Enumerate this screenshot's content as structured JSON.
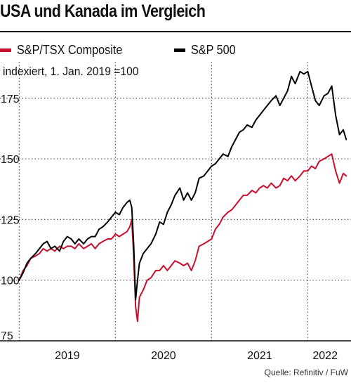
{
  "title": "USA und Kanada im Vergleich",
  "subtitle": "indexiert, 1. Jan. 2019 =100",
  "source": "Quelle: Refinitiv / FuW",
  "legend": [
    {
      "label": "S&P/TSX Composite",
      "color": "#c8102e"
    },
    {
      "label": "S&P 500",
      "color": "#000000"
    }
  ],
  "chart_data": {
    "type": "line",
    "ylim": [
      75,
      190
    ],
    "xlim": [
      2018.8,
      2022.45
    ],
    "y_ticks": [
      100,
      125,
      150,
      175
    ],
    "y_tick_labels": [
      "100",
      "125",
      "150",
      "175"
    ],
    "y_tick_label_75": "75",
    "x_ticks": [
      2019,
      2020,
      2021,
      2022
    ],
    "x_tick_labels": [
      "2019",
      "2020",
      "2021",
      "2022"
    ],
    "x_tick_label_years": [
      2019,
      2020,
      2021,
      2022
    ],
    "grid": true,
    "series": [
      {
        "name": "S&P/TSX Composite",
        "color": "#c8102e",
        "x": [
          2019.0,
          2019.04,
          2019.08,
          2019.12,
          2019.17,
          2019.21,
          2019.25,
          2019.29,
          2019.33,
          2019.37,
          2019.42,
          2019.46,
          2019.5,
          2019.54,
          2019.58,
          2019.62,
          2019.67,
          2019.71,
          2019.75,
          2019.79,
          2019.83,
          2019.87,
          2019.92,
          2019.96,
          2020.0,
          2020.04,
          2020.08,
          2020.12,
          2020.15,
          2020.17,
          2020.19,
          2020.21,
          2020.23,
          2020.25,
          2020.29,
          2020.33,
          2020.37,
          2020.42,
          2020.46,
          2020.5,
          2020.54,
          2020.58,
          2020.62,
          2020.67,
          2020.71,
          2020.75,
          2020.79,
          2020.83,
          2020.87,
          2020.92,
          2020.96,
          2021.0,
          2021.04,
          2021.08,
          2021.12,
          2021.17,
          2021.21,
          2021.25,
          2021.29,
          2021.33,
          2021.37,
          2021.42,
          2021.46,
          2021.5,
          2021.54,
          2021.58,
          2021.62,
          2021.67,
          2021.71,
          2021.75,
          2021.79,
          2021.83,
          2021.87,
          2021.92,
          2021.96,
          2022.0,
          2022.04,
          2022.08,
          2022.12,
          2022.17,
          2022.21,
          2022.25,
          2022.29,
          2022.33,
          2022.37,
          2022.4
        ],
        "values": [
          100,
          104,
          106,
          109,
          110,
          111,
          113,
          112,
          113,
          112,
          114,
          113,
          114,
          114,
          113,
          115,
          113,
          114,
          115,
          113,
          115,
          116,
          117,
          117,
          119,
          118,
          119,
          120,
          122,
          125,
          110,
          89,
          83,
          93,
          96,
          100,
          101,
          104,
          104,
          106,
          104,
          106,
          108,
          107,
          106,
          107,
          104,
          108,
          114,
          115,
          116,
          117,
          121,
          123,
          126,
          128,
          129,
          131,
          133,
          135,
          135,
          137,
          136,
          138,
          139,
          138,
          140,
          138,
          139,
          142,
          141,
          143,
          141,
          143,
          145,
          145,
          147,
          146,
          149,
          150,
          151,
          152,
          145,
          140,
          144,
          143
        ]
      },
      {
        "name": "S&P 500",
        "color": "#000000",
        "x": [
          2019.0,
          2019.04,
          2019.08,
          2019.12,
          2019.17,
          2019.21,
          2019.25,
          2019.29,
          2019.33,
          2019.37,
          2019.42,
          2019.46,
          2019.5,
          2019.54,
          2019.58,
          2019.62,
          2019.67,
          2019.71,
          2019.75,
          2019.79,
          2019.83,
          2019.87,
          2019.92,
          2019.96,
          2020.0,
          2020.04,
          2020.08,
          2020.12,
          2020.15,
          2020.17,
          2020.19,
          2020.21,
          2020.23,
          2020.25,
          2020.29,
          2020.33,
          2020.37,
          2020.42,
          2020.46,
          2020.5,
          2020.54,
          2020.58,
          2020.62,
          2020.67,
          2020.71,
          2020.75,
          2020.79,
          2020.83,
          2020.87,
          2020.92,
          2020.96,
          2021.0,
          2021.04,
          2021.08,
          2021.12,
          2021.17,
          2021.21,
          2021.25,
          2021.29,
          2021.33,
          2021.37,
          2021.42,
          2021.46,
          2021.5,
          2021.54,
          2021.58,
          2021.62,
          2021.67,
          2021.71,
          2021.75,
          2021.79,
          2021.83,
          2021.87,
          2021.92,
          2021.96,
          2022.0,
          2022.04,
          2022.08,
          2022.12,
          2022.17,
          2022.21,
          2022.25,
          2022.29,
          2022.33,
          2022.37,
          2022.4
        ],
        "values": [
          100,
          103,
          107,
          109,
          111,
          113,
          115,
          116,
          113,
          114,
          112,
          116,
          118,
          117,
          115,
          117,
          115,
          117,
          118,
          118,
          121,
          122,
          124,
          126,
          128,
          127,
          130,
          132,
          133,
          130,
          115,
          92,
          100,
          107,
          111,
          113,
          115,
          119,
          124,
          123,
          128,
          131,
          135,
          138,
          133,
          136,
          133,
          136,
          142,
          143,
          145,
          147,
          148,
          150,
          152,
          151,
          155,
          158,
          161,
          162,
          164,
          163,
          166,
          168,
          170,
          172,
          174,
          176,
          172,
          175,
          178,
          184,
          181,
          186,
          185,
          186,
          180,
          174,
          172,
          176,
          177,
          180,
          168,
          160,
          162,
          158
        ]
      }
    ]
  }
}
